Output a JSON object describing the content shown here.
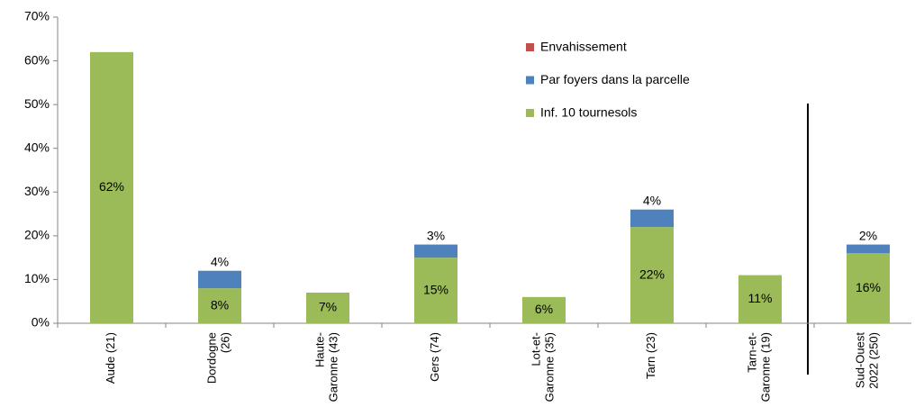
{
  "chart_data": {
    "type": "stacked_bar",
    "categories": [
      "Aude (21)",
      "Dordogne\n(26)",
      "Haute-\nGaronne (43)",
      "Gers (74)",
      "Lot-et-\nGaronne (35)",
      "Tarn (23)",
      "Tarn-et-\nGaronne (19)",
      "Sud-Ouest\n2022 (250)"
    ],
    "series": [
      {
        "name": "Inf. 10 tournesols",
        "color": "#9bbb59",
        "values": [
          62,
          8,
          7,
          15,
          6,
          22,
          11,
          16
        ],
        "value_labels": [
          "62%",
          "8%",
          "7%",
          "15%",
          "6%",
          "22%",
          "11%",
          "16%"
        ]
      },
      {
        "name": "Par foyers dans la parcelle",
        "color": "#4f81bd",
        "values": [
          null,
          4,
          null,
          3,
          null,
          4,
          null,
          2
        ],
        "value_labels": [
          null,
          "4%",
          null,
          "3%",
          null,
          "4%",
          null,
          "2%"
        ]
      },
      {
        "name": "Envahissement",
        "color": "#c0504d",
        "values": [
          null,
          null,
          null,
          null,
          null,
          null,
          null,
          null
        ]
      }
    ],
    "ylim": [
      0,
      70
    ],
    "yticks": [
      {
        "value": 0,
        "label": "0%"
      },
      {
        "value": 10,
        "label": "10%"
      },
      {
        "value": 20,
        "label": "20%"
      },
      {
        "value": 30,
        "label": "30%"
      },
      {
        "value": 40,
        "label": "40%"
      },
      {
        "value": 50,
        "label": "50%"
      },
      {
        "value": 60,
        "label": "60%"
      },
      {
        "value": 70,
        "label": "70%"
      }
    ]
  }
}
